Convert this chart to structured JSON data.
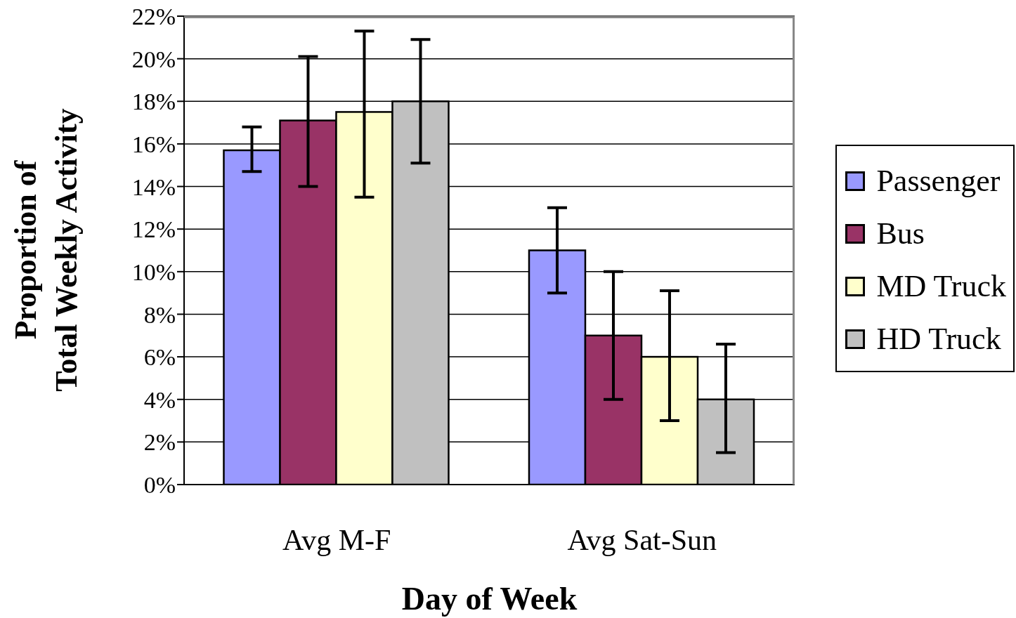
{
  "chart_data": {
    "type": "bar",
    "xlabel": "Day of Week",
    "ylabel": "Proportion of\nTotal Weekly Activity",
    "categories": [
      "Avg M-F",
      "Avg Sat-Sun"
    ],
    "series": [
      {
        "name": "Passenger",
        "color": "#9999ff",
        "values": [
          15.7,
          11.0
        ],
        "errors": [
          [
            14.7,
            16.8
          ],
          [
            9.0,
            13.0
          ]
        ]
      },
      {
        "name": "Bus",
        "color": "#993366",
        "values": [
          17.1,
          7.0
        ],
        "errors": [
          [
            14.0,
            20.1
          ],
          [
            4.0,
            10.0
          ]
        ]
      },
      {
        "name": "MD Truck",
        "color": "#ffffcc",
        "values": [
          17.5,
          6.0
        ],
        "errors": [
          [
            13.5,
            21.3
          ],
          [
            3.0,
            9.1
          ]
        ]
      },
      {
        "name": "HD Truck",
        "color": "#c0c0c0",
        "values": [
          18.0,
          4.0
        ],
        "errors": [
          [
            15.1,
            20.9
          ],
          [
            1.5,
            6.6
          ]
        ]
      }
    ],
    "ylim": [
      0,
      22
    ],
    "yticks": [
      {
        "value": 0,
        "label": "0%"
      },
      {
        "value": 2,
        "label": "2%"
      },
      {
        "value": 4,
        "label": "4%"
      },
      {
        "value": 6,
        "label": "6%"
      },
      {
        "value": 8,
        "label": "8%"
      },
      {
        "value": 10,
        "label": "10%"
      },
      {
        "value": 12,
        "label": "12%"
      },
      {
        "value": 14,
        "label": "14%"
      },
      {
        "value": 16,
        "label": "16%"
      },
      {
        "value": 18,
        "label": "18%"
      },
      {
        "value": 20,
        "label": "20%"
      },
      {
        "value": 22,
        "label": "22%"
      }
    ],
    "grid": "y",
    "legend": "right"
  }
}
